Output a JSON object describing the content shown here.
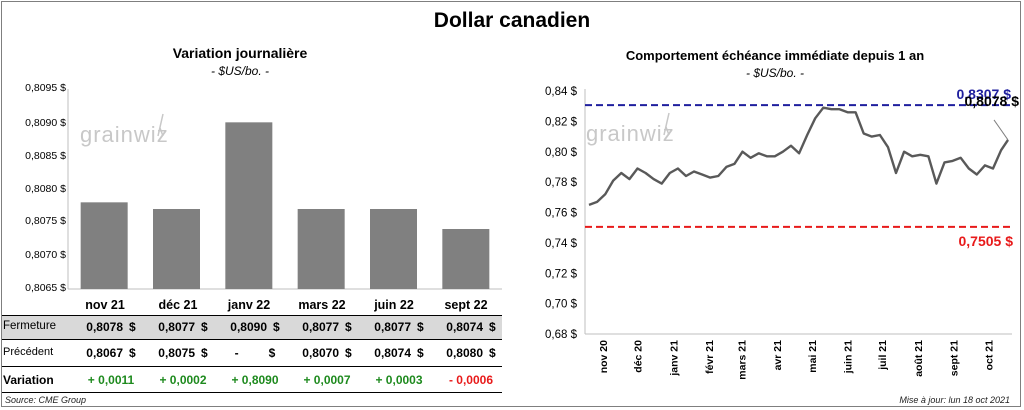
{
  "page": {
    "title": "Dollar canadien",
    "source": "Source: CME Group",
    "updated": "Mise à jour: lun 18 oct 2021",
    "watermark": "grainwiz"
  },
  "colors": {
    "bar": "#808080",
    "line": "#595959",
    "high": "#1f1f9e",
    "low": "#e81a1a",
    "pos": "#1e8a1e",
    "neg": "#e81a1a"
  },
  "left": {
    "title": "Variation  journalière",
    "unit": "- $US/bo. -",
    "currency": "$",
    "rows": {
      "fermeture": {
        "label": "Fermeture",
        "values": [
          "0,8078",
          "0,8077",
          "0,8090",
          "0,8077",
          "0,8077",
          "0,8074"
        ]
      },
      "precedent": {
        "label": "Précédent",
        "values": [
          "0,8067",
          "0,8075",
          "-",
          "0,8070",
          "0,8074",
          "0,8080"
        ]
      },
      "variation": {
        "label": "Variation",
        "values": [
          "+ 0,0011",
          "+ 0,0002",
          "+ 0,8090",
          "+ 0,0007",
          "+ 0,0003",
          "- 0,0006"
        ]
      }
    }
  },
  "right": {
    "title": "Comportement échéance immédiate depuis 1 an",
    "unit": "- $US/bo. -",
    "high_label": "0,8307 $",
    "low_label": "0,7505 $",
    "last_label": "0,8078 $"
  },
  "chart_data": [
    {
      "type": "bar",
      "categories": [
        "nov 21",
        "déc 21",
        "janv 22",
        "mars 22",
        "juin 22",
        "sept 22"
      ],
      "values": [
        0.8078,
        0.8077,
        0.809,
        0.8077,
        0.8077,
        0.8074
      ],
      "ylim": [
        0.8065,
        0.8095
      ],
      "yticks": [
        "0,8065 $",
        "0,8070 $",
        "0,8075 $",
        "0,8080 $",
        "0,8085 $",
        "0,8090 $",
        "0,8095 $"
      ],
      "grid": false
    },
    {
      "type": "line",
      "x_tick_labels": [
        "nov 20",
        "déc 20",
        "janv 21",
        "févr 21",
        "mars 21",
        "avr 21",
        "mai 21",
        "juin 21",
        "juil 21",
        "août 21",
        "sept 21",
        "oct 21"
      ],
      "ylim": [
        0.68,
        0.84
      ],
      "yticks": [
        "0,68 $",
        "0,70 $",
        "0,72 $",
        "0,74 $",
        "0,76 $",
        "0,78 $",
        "0,80 $",
        "0,82 $",
        "0,84 $"
      ],
      "reference_lines": [
        {
          "value": 0.8307,
          "color": "#1f1f9e",
          "style": "dashed"
        },
        {
          "value": 0.7505,
          "color": "#e81a1a",
          "style": "dashed"
        }
      ],
      "series": [
        {
          "x": [
            "2020-10-20",
            "2020-10-27",
            "2020-11-03",
            "2020-11-10",
            "2020-11-17",
            "2020-11-24",
            "2020-12-01",
            "2020-12-08",
            "2020-12-15",
            "2020-12-22",
            "2020-12-29",
            "2021-01-05",
            "2021-01-12",
            "2021-01-19",
            "2021-01-26",
            "2021-02-02",
            "2021-02-09",
            "2021-02-16",
            "2021-02-23",
            "2021-03-02",
            "2021-03-09",
            "2021-03-16",
            "2021-03-23",
            "2021-03-30",
            "2021-04-06",
            "2021-04-13",
            "2021-04-20",
            "2021-04-27",
            "2021-05-04",
            "2021-05-11",
            "2021-05-18",
            "2021-05-25",
            "2021-06-01",
            "2021-06-08",
            "2021-06-15",
            "2021-06-22",
            "2021-06-29",
            "2021-07-06",
            "2021-07-13",
            "2021-07-20",
            "2021-07-27",
            "2021-08-03",
            "2021-08-10",
            "2021-08-17",
            "2021-08-24",
            "2021-08-31",
            "2021-09-07",
            "2021-09-14",
            "2021-09-21",
            "2021-09-28",
            "2021-10-05",
            "2021-10-12",
            "2021-10-18"
          ],
          "values": [
            0.765,
            0.767,
            0.772,
            0.781,
            0.786,
            0.782,
            0.789,
            0.786,
            0.782,
            0.779,
            0.786,
            0.789,
            0.784,
            0.787,
            0.785,
            0.783,
            0.784,
            0.79,
            0.792,
            0.8,
            0.796,
            0.799,
            0.797,
            0.797,
            0.8,
            0.804,
            0.799,
            0.811,
            0.822,
            0.829,
            0.828,
            0.828,
            0.826,
            0.826,
            0.812,
            0.81,
            0.811,
            0.803,
            0.786,
            0.8,
            0.797,
            0.798,
            0.797,
            0.779,
            0.793,
            0.794,
            0.796,
            0.789,
            0.785,
            0.791,
            0.789,
            0.801,
            0.8078
          ]
        }
      ]
    }
  ]
}
